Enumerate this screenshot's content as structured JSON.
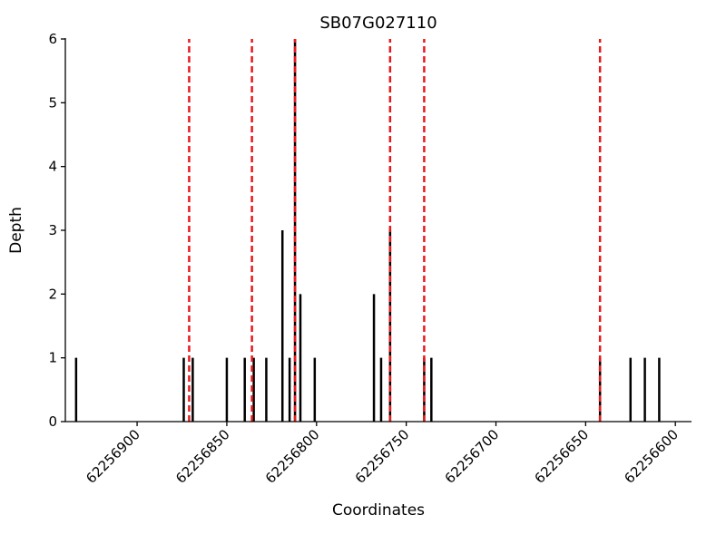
{
  "chart_data": {
    "type": "bar",
    "title": "SB07G027110",
    "xlabel": "Coordinates",
    "ylabel": "Depth",
    "x_axis_reversed": true,
    "xlim": [
      62256940,
      62256591
    ],
    "ylim": [
      0,
      6
    ],
    "xticks": [
      62256900,
      62256850,
      62256800,
      62256750,
      62256700,
      62256650,
      62256600
    ],
    "yticks": [
      0,
      1,
      2,
      3,
      4,
      5,
      6
    ],
    "grid": false,
    "legend": "none",
    "bar_color": "#000000",
    "vline_color": "#e8191c",
    "vline_style": "dashed",
    "bars": [
      {
        "x": 62256934,
        "depth": 1
      },
      {
        "x": 62256874,
        "depth": 1
      },
      {
        "x": 62256869,
        "depth": 1
      },
      {
        "x": 62256850,
        "depth": 1
      },
      {
        "x": 62256840,
        "depth": 1
      },
      {
        "x": 62256835,
        "depth": 1
      },
      {
        "x": 62256828,
        "depth": 1
      },
      {
        "x": 62256819,
        "depth": 3
      },
      {
        "x": 62256815,
        "depth": 1
      },
      {
        "x": 62256812,
        "depth": 6
      },
      {
        "x": 62256809,
        "depth": 2
      },
      {
        "x": 62256801,
        "depth": 1
      },
      {
        "x": 62256768,
        "depth": 2
      },
      {
        "x": 62256764,
        "depth": 1
      },
      {
        "x": 62256759,
        "depth": 3
      },
      {
        "x": 62256740,
        "depth": 1
      },
      {
        "x": 62256736,
        "depth": 1
      },
      {
        "x": 62256642,
        "depth": 1
      },
      {
        "x": 62256625,
        "depth": 1
      },
      {
        "x": 62256617,
        "depth": 1
      },
      {
        "x": 62256609,
        "depth": 1
      }
    ],
    "vlines": [
      62256871,
      62256836,
      62256812,
      62256759,
      62256740,
      62256642
    ]
  }
}
